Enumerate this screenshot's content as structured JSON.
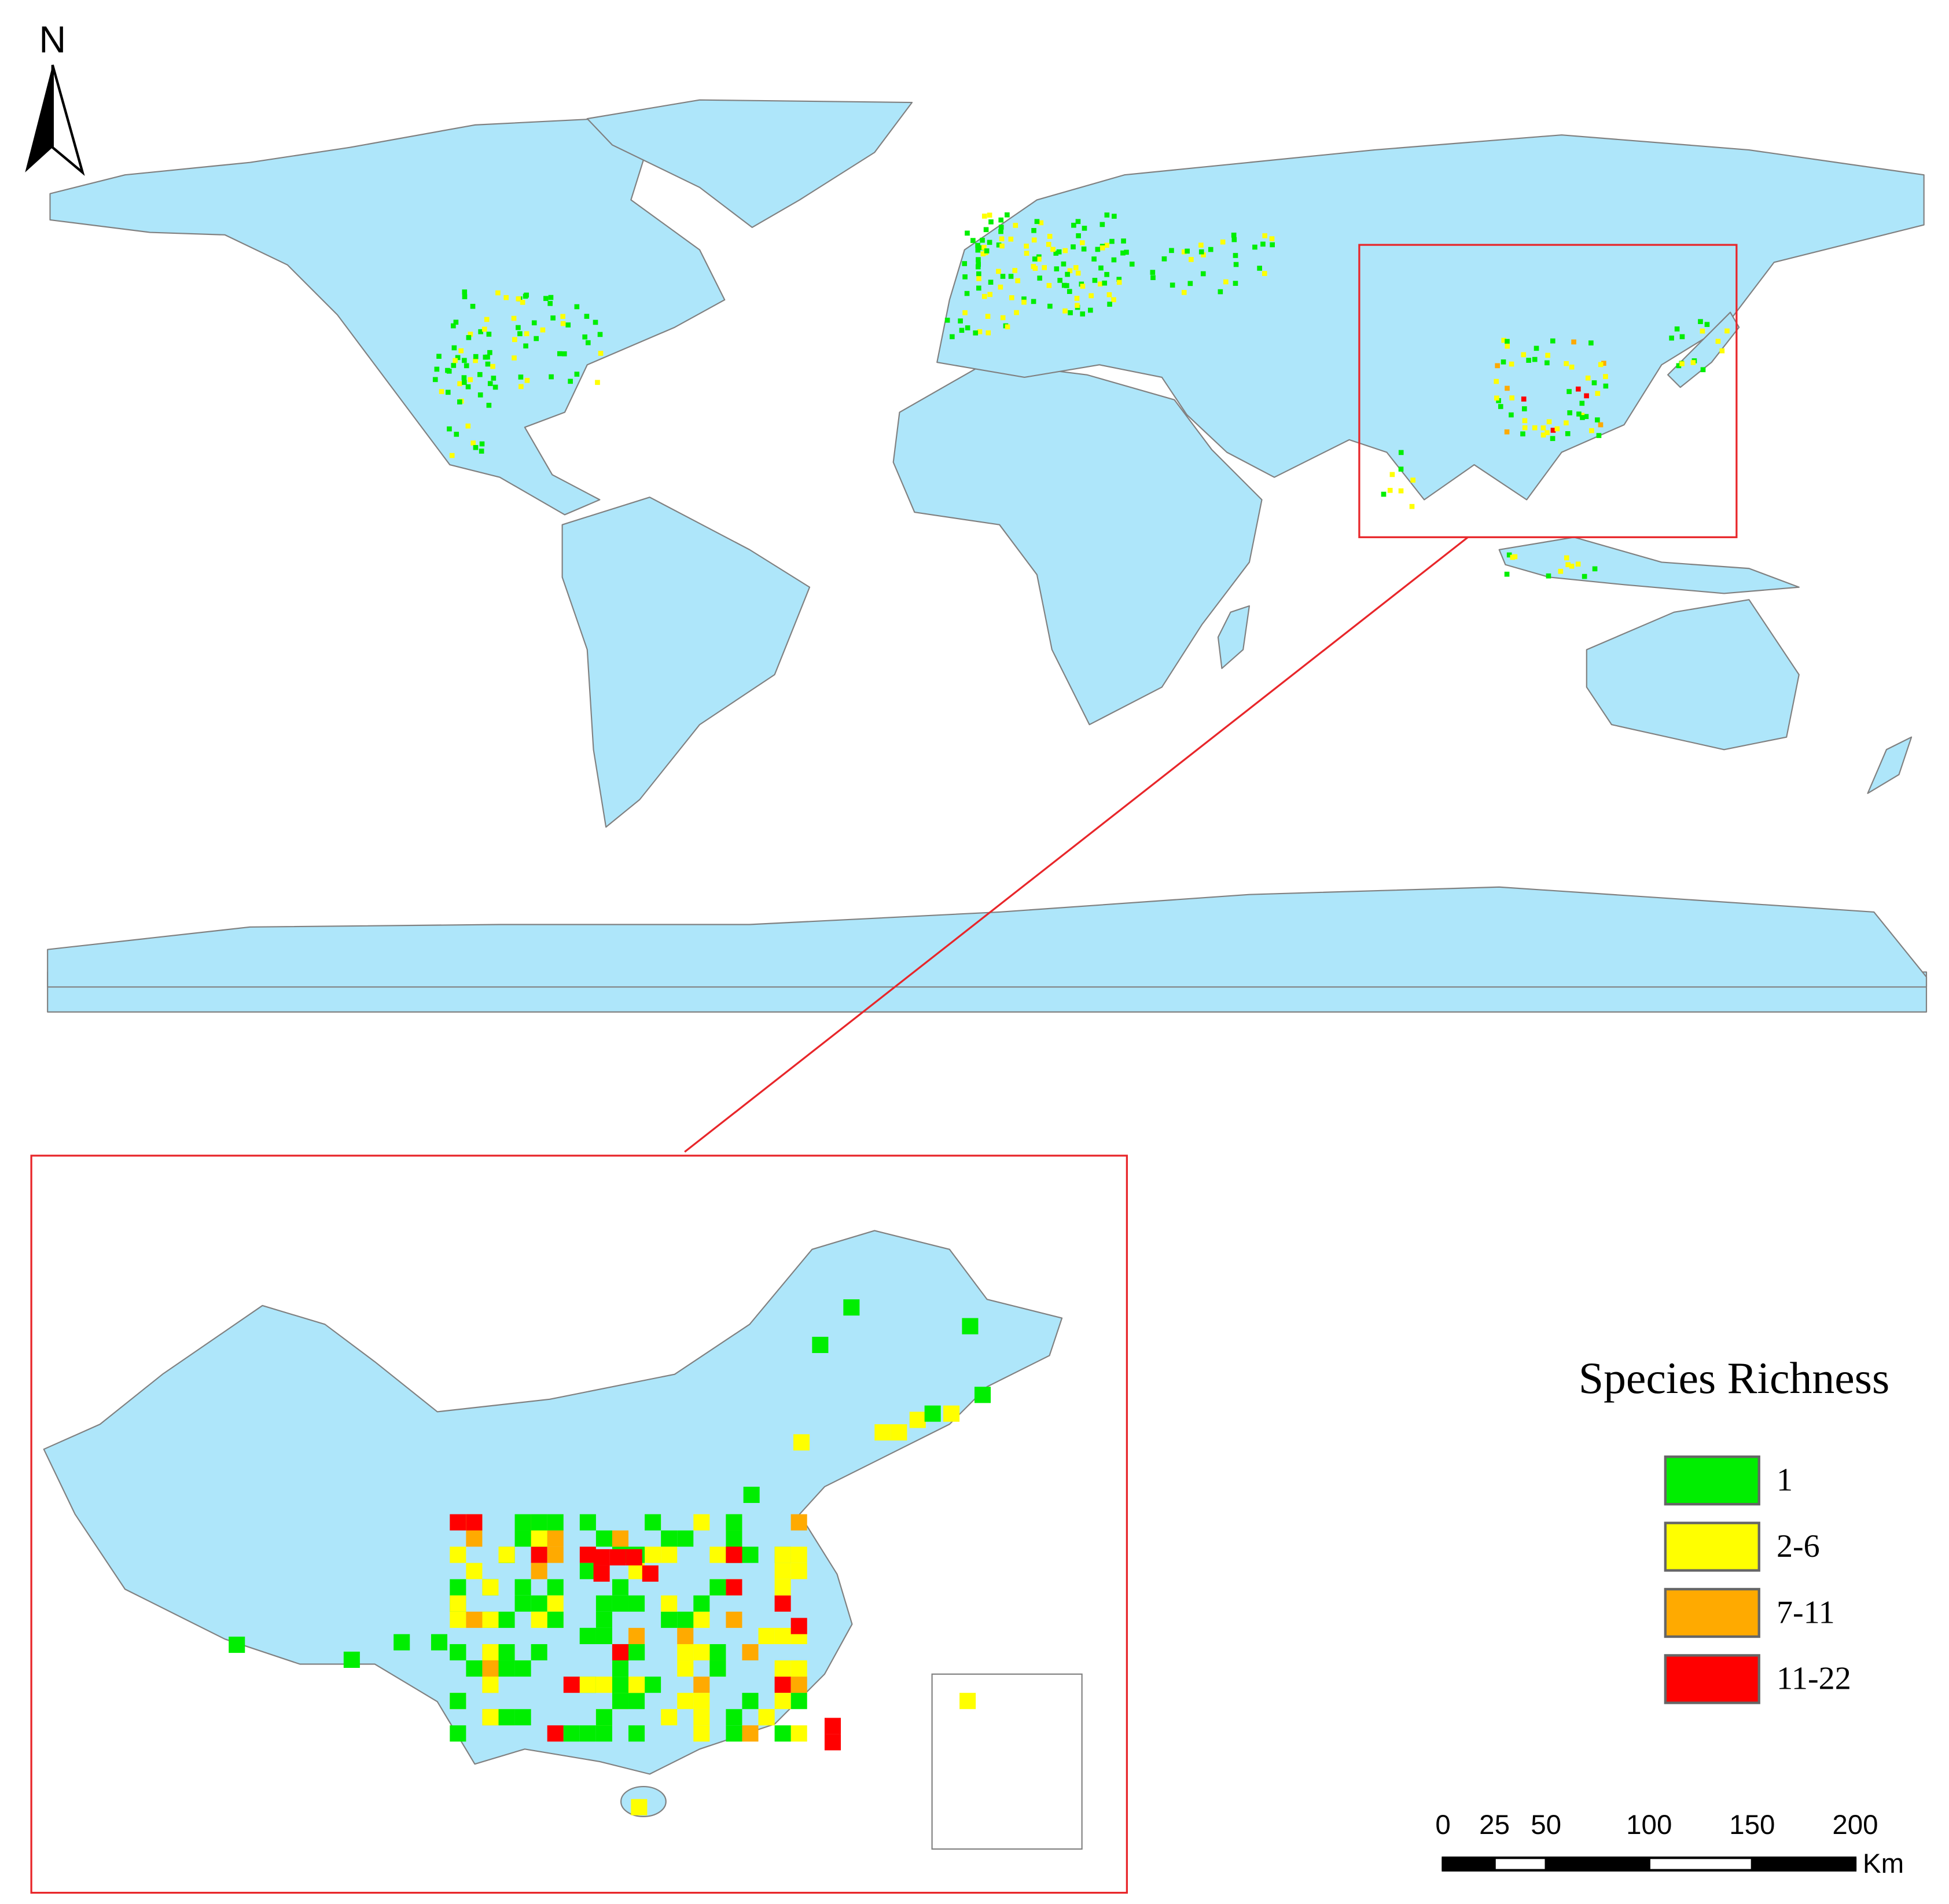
{
  "north_arrow": {
    "label": "N"
  },
  "legend": {
    "title": "Species Richness",
    "items": [
      {
        "label": "1",
        "color": "#00ee00"
      },
      {
        "label": "2-6",
        "color": "#ffff00"
      },
      {
        "label": "7-11",
        "color": "#ffaa00"
      },
      {
        "label": "11-22",
        "color": "#ff0000"
      }
    ]
  },
  "scale_bar": {
    "ticks": [
      0,
      25,
      50,
      100,
      150,
      200
    ],
    "unit": "Km"
  }
}
